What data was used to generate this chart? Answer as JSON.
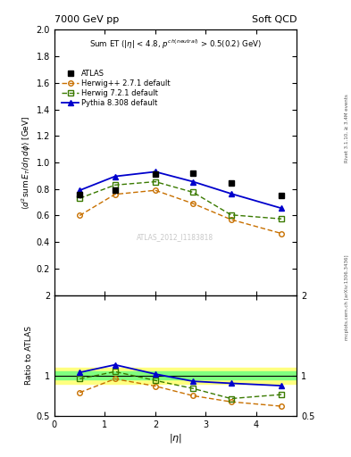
{
  "title_left": "7000 GeV pp",
  "title_right": "Soft QCD",
  "subtitle": "Sum ET ($|\\eta|$ < 4.8, $p^{ch(neutral)}$ > 0.5(0.2) GeV)",
  "watermark": "ATLAS_2012_I1183818",
  "right_label": "Rivet 3.1.10, ≥ 3.4M events",
  "mcplots_label": "mcplots.cern.ch [arXiv:1306.3436]",
  "eta": [
    0.5,
    1.2,
    2.0,
    2.75,
    3.5,
    4.5
  ],
  "atlas_y": [
    0.76,
    0.79,
    0.91,
    0.92,
    0.845,
    0.75
  ],
  "herwig_pp_y": [
    0.6,
    0.76,
    0.79,
    0.69,
    0.57,
    0.465
  ],
  "herwig72_y": [
    0.73,
    0.83,
    0.855,
    0.775,
    0.605,
    0.575
  ],
  "pythia_y": [
    0.79,
    0.895,
    0.93,
    0.855,
    0.765,
    0.655
  ],
  "ratio_atlas_band_inner": 0.05,
  "ratio_atlas_band_outer": 0.1,
  "ratio_herwig_pp": [
    0.79,
    0.96,
    0.87,
    0.75,
    0.675,
    0.62
  ],
  "ratio_herwig72": [
    0.96,
    1.05,
    0.94,
    0.84,
    0.715,
    0.765
  ],
  "ratio_pythia": [
    1.04,
    1.135,
    1.02,
    0.93,
    0.905,
    0.875
  ],
  "atlas_color": "black",
  "herwig_pp_color": "#c87000",
  "herwig72_color": "#3a7a00",
  "pythia_color": "#0000cc",
  "band_yellow": "#ffff80",
  "band_green": "#80ff80",
  "ylim_main": [
    0.0,
    2.0
  ],
  "ylim_ratio": [
    0.5,
    2.0
  ],
  "xlim": [
    0.0,
    4.8
  ],
  "yticks_main": [
    0.2,
    0.4,
    0.6,
    0.8,
    1.0,
    1.2,
    1.4,
    1.6,
    1.8,
    2.0
  ],
  "yticks_ratio": [
    0.5,
    1.0,
    2.0
  ]
}
